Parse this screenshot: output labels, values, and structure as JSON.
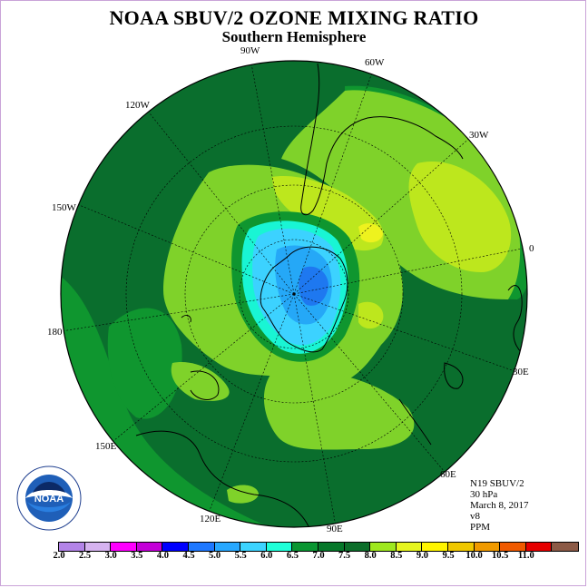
{
  "title": "NOAA SBUV/2 OZONE MIXING RATIO",
  "subtitle": "Southern Hemisphere",
  "longitude_labels": [
    "90W",
    "60W",
    "30W",
    "0",
    "30E",
    "60E",
    "90E",
    "120E",
    "150E",
    "180",
    "150W",
    "120W"
  ],
  "info": {
    "instrument": "N19 SBUV/2",
    "level": "30 hPa",
    "date": "March 8, 2017",
    "version": "v8",
    "units": "PPM"
  },
  "logo_text": "NOAA",
  "colorbar": {
    "labels": [
      "2.0",
      "2.5",
      "3.0",
      "3.5",
      "4.0",
      "4.5",
      "5.0",
      "5.5",
      "6.0",
      "6.5",
      "7.0",
      "7.5",
      "8.0",
      "8.5",
      "9.0",
      "9.5",
      "10.0",
      "10.5",
      "11.0"
    ],
    "colors": [
      "#b384e8",
      "#d6b3f0",
      "#ff00ff",
      "#c400d8",
      "#0000ff",
      "#1e78ff",
      "#28a8ff",
      "#3cd4ff",
      "#1effd8",
      "#0a9632",
      "#06782a",
      "#0c6e2a",
      "#9ee81e",
      "#e6f51e",
      "#fff500",
      "#f0c800",
      "#f09a00",
      "#f05a00",
      "#e60000",
      "#8c5a46"
    ]
  },
  "map_colors": {
    "c65": "#0f962f",
    "c70": "#0a6e2d",
    "c75": "#7fd22a",
    "c80": "#bde71d",
    "c85": "#eef21e",
    "c60": "#19f5d4",
    "c55": "#3cd2ff",
    "c50": "#25a8f7",
    "c45": "#1e78f0"
  }
}
